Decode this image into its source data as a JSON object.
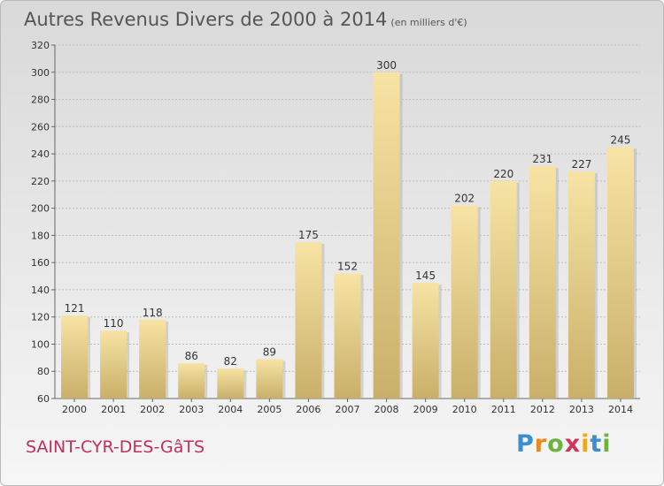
{
  "chart_data": {
    "type": "bar",
    "title": "Autres Revenus Divers de 2000 à 2014",
    "unit": "(en milliers d'€)",
    "categories": [
      "2000",
      "2001",
      "2002",
      "2003",
      "2004",
      "2005",
      "2006",
      "2007",
      "2008",
      "2009",
      "2010",
      "2011",
      "2012",
      "2013",
      "2014"
    ],
    "values": [
      121,
      110,
      118,
      86,
      82,
      89,
      175,
      152,
      300,
      145,
      202,
      220,
      231,
      227,
      245
    ],
    "ylim": [
      60,
      320
    ],
    "yticks": [
      60,
      80,
      100,
      120,
      140,
      160,
      180,
      200,
      220,
      240,
      260,
      280,
      300,
      320
    ],
    "grid": true,
    "xlabel": "",
    "ylabel": ""
  },
  "place_name": "SAINT-CYR-DES-GâTS",
  "brand": {
    "p": "P",
    "r": "r",
    "o": "o",
    "x": "x",
    "i1": "i",
    "t": "t",
    "i2": "i"
  },
  "colors": {
    "bar_top": "#f7e3a4",
    "bar_bottom": "#c9b06a",
    "place": "#c0305a"
  }
}
